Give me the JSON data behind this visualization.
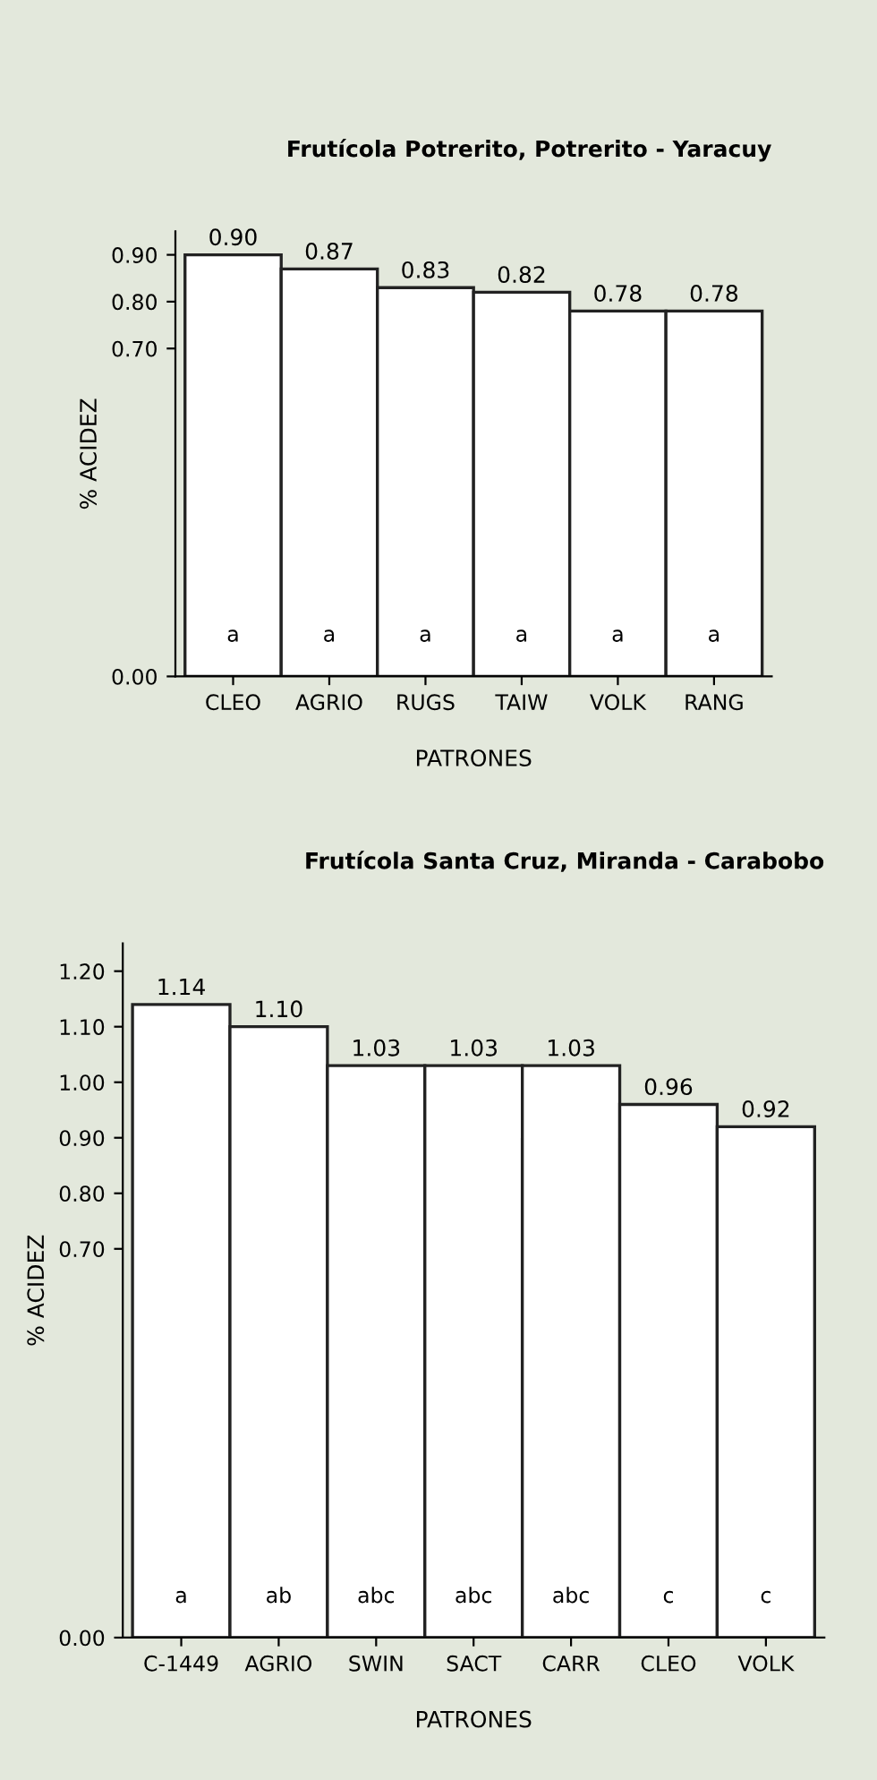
{
  "chart_data": [
    {
      "type": "bar",
      "title": "Frutícola Potrerito, Potrerito - Yaracuy",
      "xlabel": "PATRONES",
      "ylabel": "% ACIDEZ",
      "categories": [
        "CLEO",
        "AGRIO",
        "RUGS",
        "TAIW",
        "VOLK",
        "RANG"
      ],
      "values": [
        0.9,
        0.87,
        0.83,
        0.82,
        0.78,
        0.78
      ],
      "value_labels": [
        "0.90",
        "0.87",
        "0.83",
        "0.82",
        "0.78",
        "0.78"
      ],
      "color": "#ffffff",
      "ylim": [
        0,
        0.95
      ],
      "yticks": [
        {
          "value": 0,
          "label": "0.00"
        },
        {
          "value": 0.7,
          "label": "0.70"
        },
        {
          "value": 0.8,
          "label": "0.80"
        },
        {
          "value": 0.9,
          "label": "0.90"
        }
      ],
      "annotations": [
        "a",
        "a",
        "a",
        "a",
        "a",
        "a"
      ]
    },
    {
      "type": "bar",
      "title": "Frutícola Santa Cruz, Miranda - Carabobo",
      "xlabel": "PATRONES",
      "ylabel": "% ACIDEZ",
      "categories": [
        "C-1449",
        "AGRIO",
        "SWIN",
        "SACT",
        "CARR",
        "CLEO",
        "VOLK"
      ],
      "values": [
        1.14,
        1.1,
        1.03,
        1.03,
        1.03,
        0.96,
        0.92
      ],
      "value_labels": [
        "1.14",
        "1.10",
        "1.03",
        "1.03",
        "1.03",
        "0.96",
        "0.92"
      ],
      "color": "#ffffff",
      "ylim": [
        0,
        1.25
      ],
      "yticks": [
        {
          "value": 0,
          "label": "0.00"
        },
        {
          "value": 0.7,
          "label": "0.70"
        },
        {
          "value": 0.8,
          "label": "0.80"
        },
        {
          "value": 0.9,
          "label": "0.90"
        },
        {
          "value": 1.0,
          "label": "1.00"
        },
        {
          "value": 1.1,
          "label": "1.10"
        },
        {
          "value": 1.2,
          "label": "1.20"
        }
      ],
      "annotations": [
        "a",
        "ab",
        "abc",
        "abc",
        "abc",
        "c",
        "c"
      ]
    }
  ]
}
